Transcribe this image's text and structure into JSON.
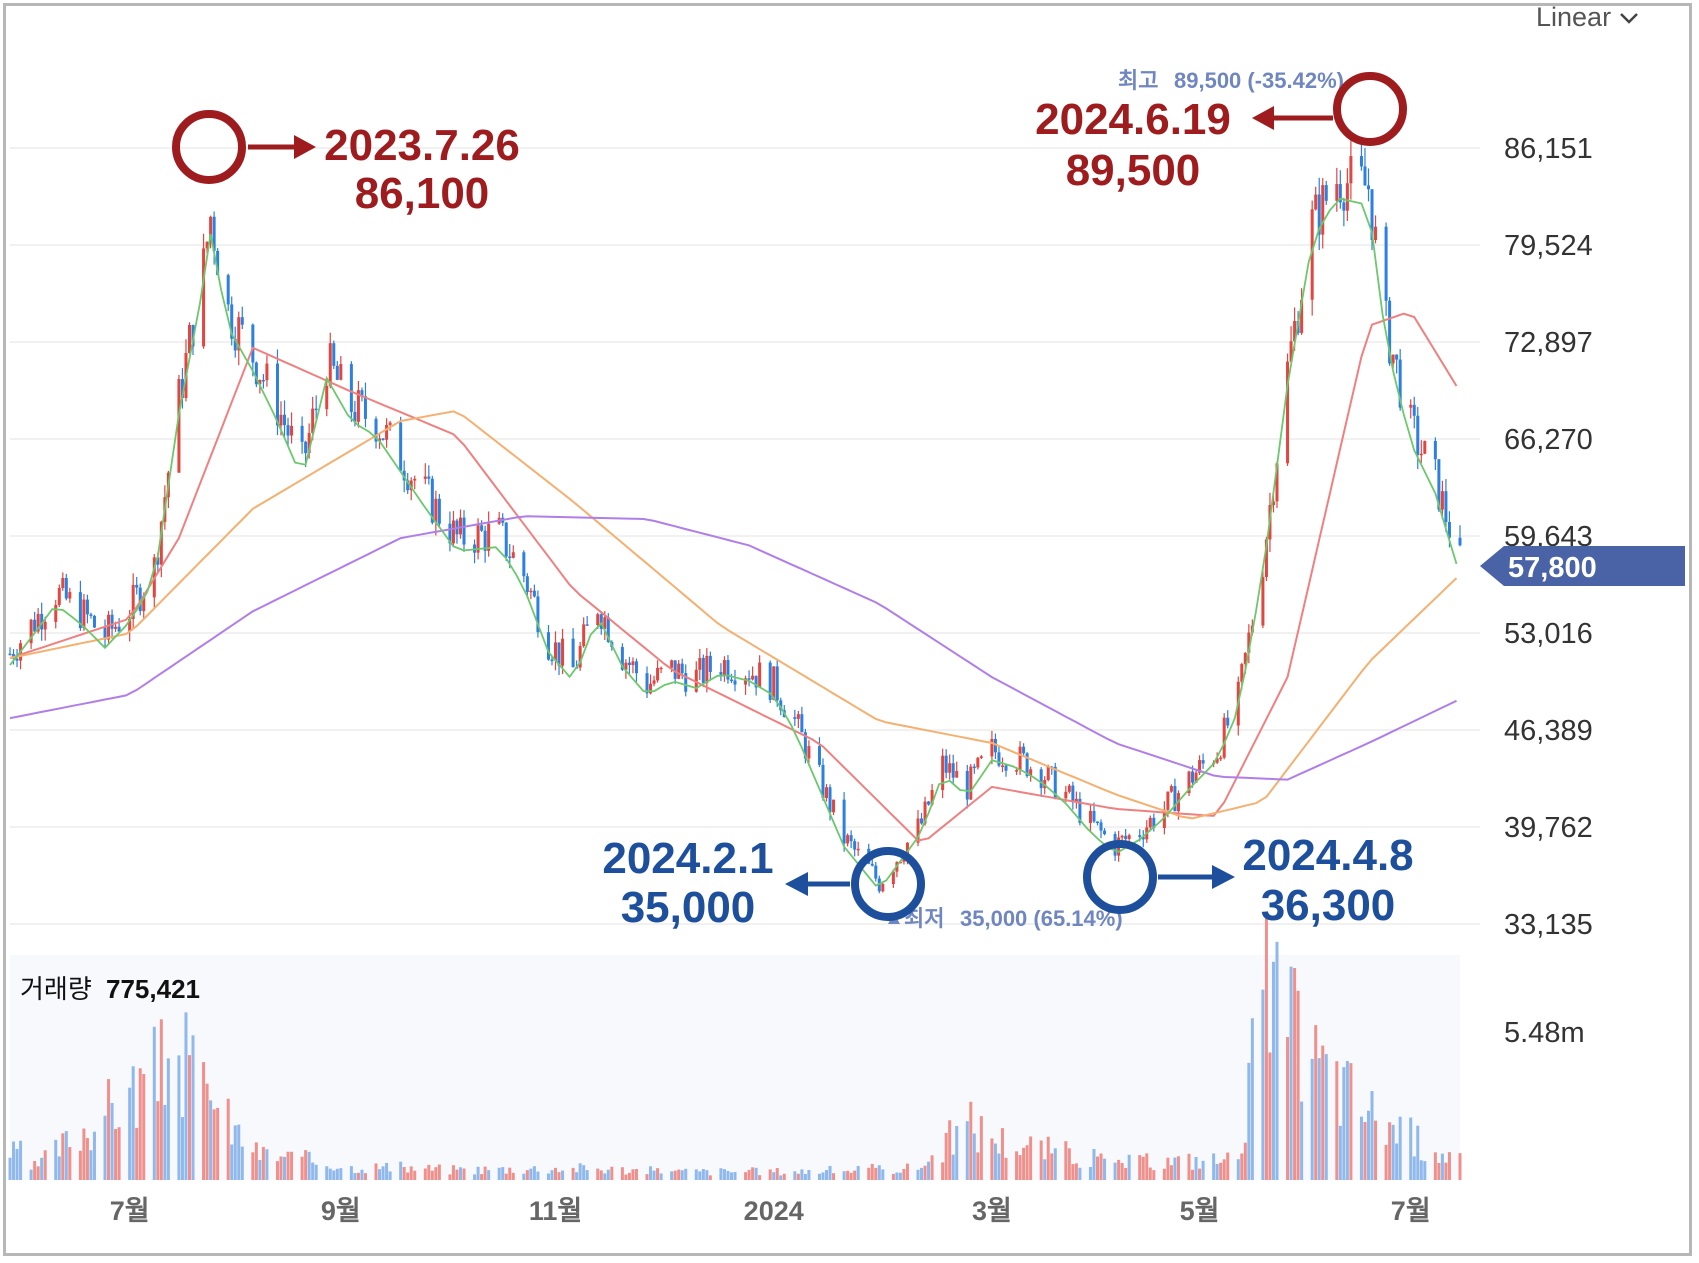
{
  "scale_selector": {
    "label": "Linear"
  },
  "volume_panel": {
    "label": "거래량",
    "value": "775,421",
    "ytick": "5.48m"
  },
  "current_price": {
    "label": "57,800",
    "value": 57800,
    "color": "#4a62a6"
  },
  "extremes": {
    "high": {
      "prefix": "최고",
      "text": "89,500 (-35.42%)"
    },
    "low": {
      "prefix": "최저",
      "text": "35,000 (65.14%)"
    }
  },
  "annotations": {
    "peak_2023": {
      "date": "2023.7.26",
      "price": "86,100"
    },
    "peak_2024": {
      "date": "2024.6.19",
      "price": "89,500"
    },
    "low_feb": {
      "date": "2024.2.1",
      "price": "35,000"
    },
    "low_apr": {
      "date": "2024.4.8",
      "price": "36,300"
    }
  },
  "colors": {
    "up": "#e3453f",
    "down": "#2d7fe0",
    "ma5": "#6cc86c",
    "ma20": "#f08080",
    "ma60": "#f5b070",
    "ma120": "#b07ee8",
    "annotation_red": "#9e1b1e",
    "annotation_blue": "#1e4f9c"
  },
  "chart_data": {
    "type": "candlestick",
    "ylim": [
      30000,
      92500
    ],
    "yticks": [
      "86,151",
      "79,524",
      "72,897",
      "66,270",
      "59,643",
      "53,016",
      "46,389",
      "39,762",
      "33,135"
    ],
    "ytick_values": [
      86151,
      79524,
      72897,
      66270,
      59643,
      53016,
      46389,
      39762,
      33135
    ],
    "xticks": [
      "7월",
      "9월",
      "11월",
      "2024",
      "3월",
      "5월",
      "7월"
    ],
    "xtick_dates": [
      "2023-07",
      "2023-09",
      "2023-11",
      "2024-01",
      "2024-03",
      "2024-05",
      "2024-07"
    ],
    "series": [
      {
        "name": "close",
        "points": [
          [
            "2023-05-30",
            51600
          ],
          [
            "2023-06-05",
            53500
          ],
          [
            "2023-06-12",
            55800
          ],
          [
            "2023-06-19",
            54500
          ],
          [
            "2023-06-26",
            52800
          ],
          [
            "2023-07-03",
            54600
          ],
          [
            "2023-07-10",
            57500
          ],
          [
            "2023-07-17",
            69000
          ],
          [
            "2023-07-24",
            78000
          ],
          [
            "2023-07-26",
            81500
          ],
          [
            "2023-07-31",
            75000
          ],
          [
            "2023-08-07",
            72000
          ],
          [
            "2023-08-14",
            68500
          ],
          [
            "2023-08-21",
            64500
          ],
          [
            "2023-08-28",
            71500
          ],
          [
            "2023-09-04",
            68500
          ],
          [
            "2023-09-11",
            67500
          ],
          [
            "2023-09-18",
            65000
          ],
          [
            "2023-09-25",
            62500
          ],
          [
            "2023-10-04",
            59500
          ],
          [
            "2023-10-16",
            59800
          ],
          [
            "2023-10-23",
            57000
          ],
          [
            "2023-10-30",
            52500
          ],
          [
            "2023-11-06",
            50500
          ],
          [
            "2023-11-13",
            55000
          ],
          [
            "2023-11-20",
            51500
          ],
          [
            "2023-11-27",
            49500
          ],
          [
            "2023-12-04",
            50500
          ],
          [
            "2023-12-11",
            50000
          ],
          [
            "2023-12-18",
            51000
          ],
          [
            "2023-12-26",
            50500
          ],
          [
            "2024-01-02",
            49500
          ],
          [
            "2024-01-08",
            47000
          ],
          [
            "2024-01-15",
            43000
          ],
          [
            "2024-01-22",
            39000
          ],
          [
            "2024-02-01",
            36000
          ],
          [
            "2024-02-13",
            40000
          ],
          [
            "2024-02-19",
            44000
          ],
          [
            "2024-02-26",
            42500
          ],
          [
            "2024-03-04",
            45000
          ],
          [
            "2024-03-11",
            44500
          ],
          [
            "2024-03-18",
            43500
          ],
          [
            "2024-03-25",
            42000
          ],
          [
            "2024-04-01",
            40000
          ],
          [
            "2024-04-08",
            38500
          ],
          [
            "2024-04-15",
            39500
          ],
          [
            "2024-04-22",
            41000
          ],
          [
            "2024-04-29",
            43000
          ],
          [
            "2024-05-07",
            45000
          ],
          [
            "2024-05-13",
            48500
          ],
          [
            "2024-05-20",
            58000
          ],
          [
            "2024-05-27",
            71000
          ],
          [
            "2024-06-03",
            81000
          ],
          [
            "2024-06-10",
            84000
          ],
          [
            "2024-06-19",
            83500
          ],
          [
            "2024-06-24",
            74000
          ],
          [
            "2024-07-01",
            67000
          ],
          [
            "2024-07-08",
            63500
          ],
          [
            "2024-07-15",
            57800
          ]
        ]
      },
      {
        "name": "MA20",
        "points": [
          [
            "2023-05-30",
            51300
          ],
          [
            "2023-07-03",
            54000
          ],
          [
            "2023-07-17",
            59500
          ],
          [
            "2023-08-07",
            72500
          ],
          [
            "2023-09-04",
            69500
          ],
          [
            "2023-10-04",
            66500
          ],
          [
            "2023-11-06",
            56000
          ],
          [
            "2023-12-04",
            50500
          ],
          [
            "2024-01-15",
            45500
          ],
          [
            "2024-02-13",
            38600
          ],
          [
            "2024-03-04",
            42500
          ],
          [
            "2024-04-08",
            41000
          ],
          [
            "2024-05-07",
            40500
          ],
          [
            "2024-05-27",
            50000
          ],
          [
            "2024-06-19",
            74000
          ],
          [
            "2024-07-01",
            75000
          ],
          [
            "2024-07-15",
            69500
          ]
        ]
      },
      {
        "name": "MA60",
        "points": [
          [
            "2023-05-30",
            51300
          ],
          [
            "2023-07-03",
            53000
          ],
          [
            "2023-08-07",
            61500
          ],
          [
            "2023-09-18",
            67500
          ],
          [
            "2023-10-04",
            68200
          ],
          [
            "2023-11-06",
            62000
          ],
          [
            "2023-12-18",
            53500
          ],
          [
            "2024-02-01",
            47000
          ],
          [
            "2024-03-04",
            45500
          ],
          [
            "2024-04-08",
            42000
          ],
          [
            "2024-04-29",
            40300
          ],
          [
            "2024-05-20",
            41500
          ],
          [
            "2024-06-19",
            51000
          ],
          [
            "2024-07-15",
            57000
          ]
        ]
      },
      {
        "name": "MA120",
        "points": [
          [
            "2023-05-30",
            47200
          ],
          [
            "2023-07-03",
            48800
          ],
          [
            "2023-08-07",
            54500
          ],
          [
            "2023-09-18",
            59500
          ],
          [
            "2023-10-23",
            61000
          ],
          [
            "2023-11-27",
            60800
          ],
          [
            "2023-12-26",
            59000
          ],
          [
            "2024-02-01",
            55000
          ],
          [
            "2024-03-04",
            50000
          ],
          [
            "2024-04-08",
            45500
          ],
          [
            "2024-05-07",
            43200
          ],
          [
            "2024-05-27",
            43000
          ],
          [
            "2024-06-19",
            45500
          ],
          [
            "2024-07-15",
            48500
          ]
        ]
      }
    ],
    "volume": {
      "ytick": "5.48m",
      "ymax": 6500000,
      "points": [
        [
          "2023-06-05",
          300000
        ],
        [
          "2023-07-17",
          3600000
        ],
        [
          "2023-07-26",
          2300000
        ],
        [
          "2023-08-07",
          800000
        ],
        [
          "2023-09-04",
          400000
        ],
        [
          "2023-10-04",
          300000
        ],
        [
          "2023-11-06",
          350000
        ],
        [
          "2023-12-04",
          250000
        ],
        [
          "2024-01-08",
          250000
        ],
        [
          "2024-02-13",
          350000
        ],
        [
          "2024-02-26",
          1700000
        ],
        [
          "2024-03-04",
          1200000
        ],
        [
          "2024-04-08",
          500000
        ],
        [
          "2024-05-13",
          600000
        ],
        [
          "2024-05-20",
          5500000
        ],
        [
          "2024-06-03",
          3500000
        ],
        [
          "2024-06-19",
          2000000
        ],
        [
          "2024-07-08",
          800000
        ],
        [
          "2024-07-15",
          775421
        ]
      ]
    }
  }
}
